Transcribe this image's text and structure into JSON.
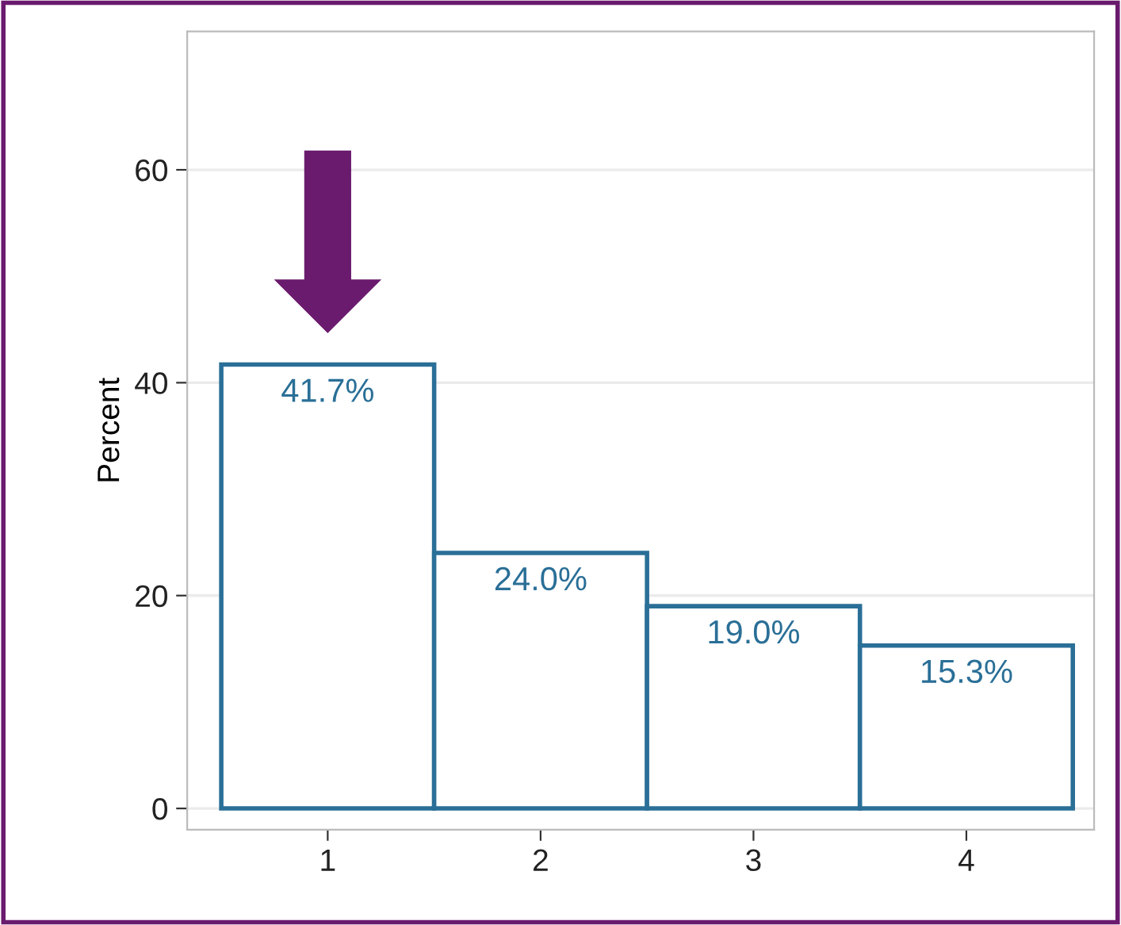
{
  "chart_data": {
    "type": "bar",
    "ylabel": "Percent",
    "categories": [
      "1",
      "2",
      "3",
      "4"
    ],
    "values": [
      41.7,
      24.0,
      19.0,
      15.3
    ],
    "color": "#2a6f97",
    "value_labels": [
      "41.7%",
      "24.0%",
      "19.0%",
      "15.3%"
    ],
    "ylim": [
      -2,
      73
    ],
    "yticks": [
      0,
      20,
      40,
      60
    ],
    "grid": "y",
    "legend": false
  }
}
